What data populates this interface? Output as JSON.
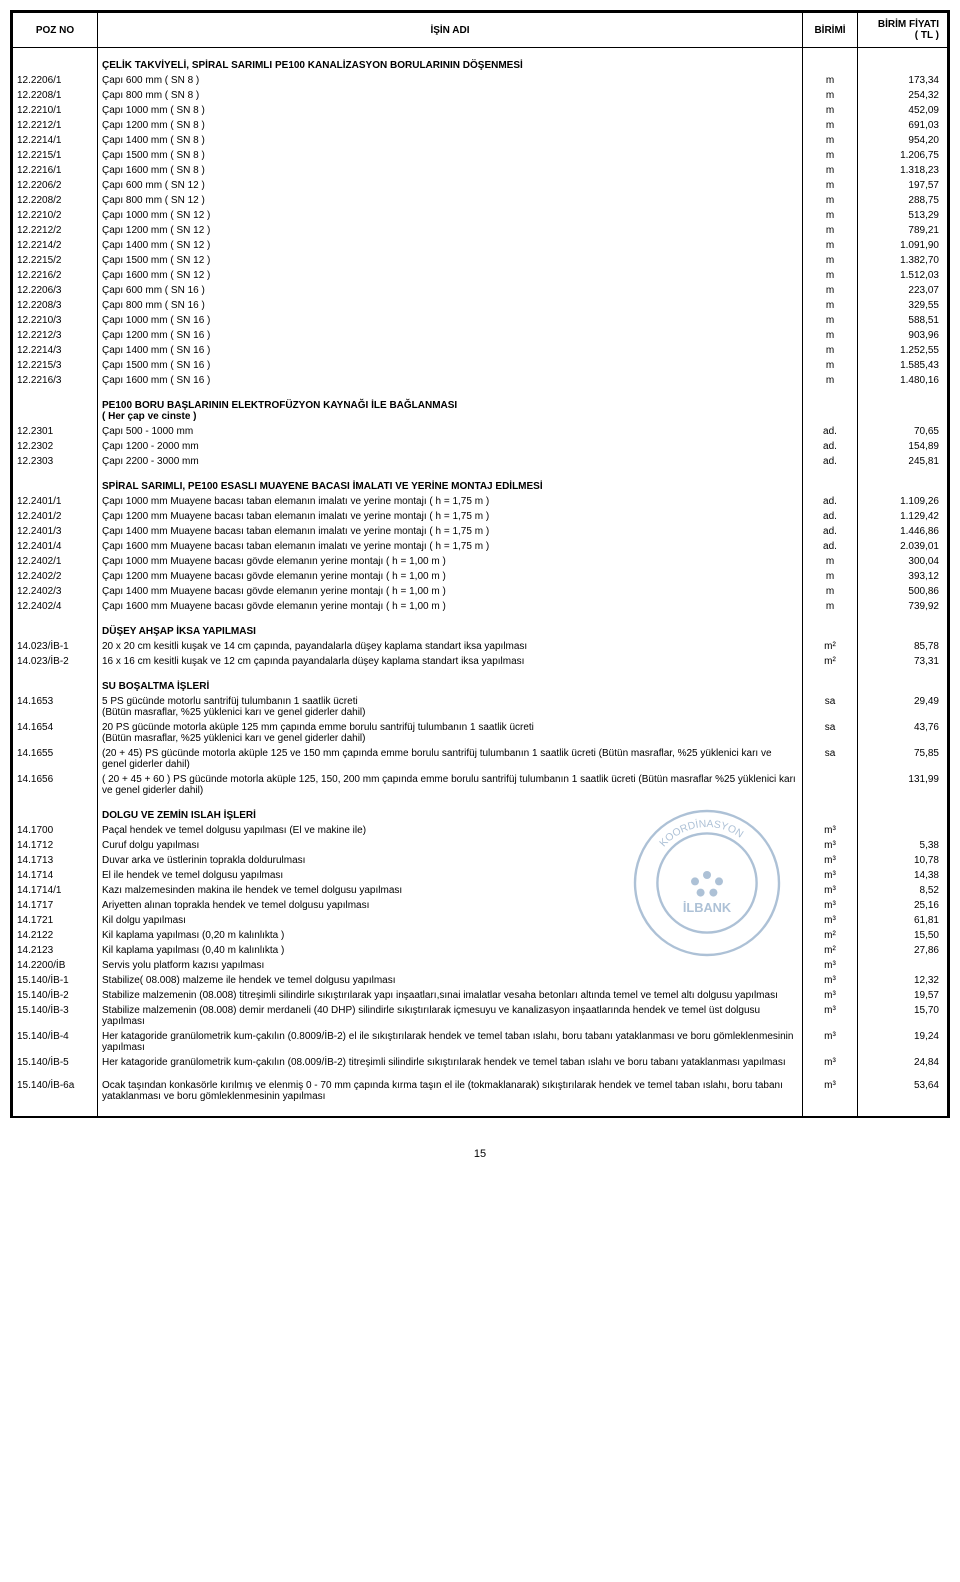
{
  "header": {
    "poz": "POZ NO",
    "ad": "İŞİN  ADI",
    "birim": "BİRİMİ",
    "fiyat": "BİRİM FİYATI\n( TL )"
  },
  "sections": [
    {
      "title": "ÇELİK TAKVİYELİ, SPİRAL SARIMLI  PE100  KANALİZASYON BORULARININ DÖŞENMESİ",
      "rows": [
        [
          "12.2206/1",
          "Çapı   600 mm     ( SN 8 )",
          "m",
          "173,34"
        ],
        [
          "12.2208/1",
          "Çapı   800 mm     ( SN 8 )",
          "m",
          "254,32"
        ],
        [
          "12.2210/1",
          "Çapı  1000 mm     ( SN 8 )",
          "m",
          "452,09"
        ],
        [
          "12.2212/1",
          "Çapı  1200 mm     ( SN 8 )",
          "m",
          "691,03"
        ],
        [
          "12.2214/1",
          "Çapı  1400 mm     ( SN 8 )",
          "m",
          "954,20"
        ],
        [
          "12.2215/1",
          "Çapı  1500 mm     ( SN 8 )",
          "m",
          "1.206,75"
        ],
        [
          "12.2216/1",
          "Çapı  1600 mm     ( SN 8 )",
          "m",
          "1.318,23"
        ],
        [
          "12.2206/2",
          "Çapı   600 mm     ( SN 12 )",
          "m",
          "197,57"
        ],
        [
          "12.2208/2",
          "Çapı   800 mm     ( SN 12 )",
          "m",
          "288,75"
        ],
        [
          "12.2210/2",
          "Çapı  1000 mm     ( SN 12 )",
          "m",
          "513,29"
        ],
        [
          "12.2212/2",
          "Çapı  1200 mm     ( SN 12 )",
          "m",
          "789,21"
        ],
        [
          "12.2214/2",
          "Çapı  1400 mm     ( SN 12 )",
          "m",
          "1.091,90"
        ],
        [
          "12.2215/2",
          "Çapı  1500 mm     ( SN 12 )",
          "m",
          "1.382,70"
        ],
        [
          "12.2216/2",
          "Çapı  1600 mm     ( SN 12 )",
          "m",
          "1.512,03"
        ],
        [
          "12.2206/3",
          "Çapı   600 mm     ( SN 16 )",
          "m",
          "223,07"
        ],
        [
          "12.2208/3",
          "Çapı   800 mm     ( SN 16 )",
          "m",
          "329,55"
        ],
        [
          "12.2210/3",
          "Çapı  1000 mm     ( SN 16 )",
          "m",
          "588,51"
        ],
        [
          "12.2212/3",
          "Çapı  1200 mm     ( SN 16 )",
          "m",
          "903,96"
        ],
        [
          "12.2214/3",
          "Çapı  1400 mm     ( SN 16 )",
          "m",
          "1.252,55"
        ],
        [
          "12.2215/3",
          "Çapı  1500 mm     ( SN 16 )",
          "m",
          "1.585,43"
        ],
        [
          "12.2216/3",
          "Çapı  1600 mm     ( SN 16 )",
          "m",
          "1.480,16"
        ]
      ]
    },
    {
      "title": "PE100  BORU BAŞLARININ ELEKTROFÜZYON KAYNAĞI İLE BAĞLANMASI",
      "subtitle": "( Her çap ve cinste )",
      "rows": [
        [
          "12.2301",
          "Çapı    500 - 1000 mm",
          "ad.",
          "70,65"
        ],
        [
          "12.2302",
          "Çapı   1200 - 2000 mm",
          "ad.",
          "154,89"
        ],
        [
          "12.2303",
          "Çapı   2200 - 3000 mm",
          "ad.",
          "245,81"
        ]
      ]
    },
    {
      "title": "SPİRAL SARIMLI, PE100 ESASLI MUAYENE BACASI İMALATI VE YERİNE MONTAJ EDİLMESİ",
      "rows": [
        [
          "12.2401/1",
          "Çapı  1000 mm  Muayene bacası taban elemanın imalatı ve yerine montajı     ( h = 1,75 m )",
          "ad.",
          "1.109,26"
        ],
        [
          "12.2401/2",
          "Çapı  1200 mm  Muayene bacası taban elemanın imalatı ve yerine montajı     ( h = 1,75 m )",
          "ad.",
          "1.129,42"
        ],
        [
          "12.2401/3",
          "Çapı  1400 mm  Muayene bacası taban elemanın imalatı ve yerine montajı     ( h = 1,75 m )",
          "ad.",
          "1.446,86"
        ],
        [
          "12.2401/4",
          "Çapı  1600 mm  Muayene bacası taban elemanın imalatı ve yerine montajı     ( h = 1,75 m )",
          "ad.",
          "2.039,01"
        ],
        [
          "12.2402/1",
          "Çapı  1000 mm  Muayene bacası gövde elemanın yerine montajı                ( h = 1,00 m )",
          "m",
          "300,04"
        ],
        [
          "12.2402/2",
          "Çapı  1200 mm  Muayene bacası gövde elemanın yerine montajı                ( h = 1,00 m )",
          "m",
          "393,12"
        ],
        [
          "12.2402/3",
          "Çapı  1400 mm  Muayene bacası gövde elemanın yerine montajı                ( h = 1,00 m )",
          "m",
          "500,86"
        ],
        [
          "12.2402/4",
          "Çapı  1600 mm  Muayene bacası gövde elemanın yerine montajı                ( h = 1,00 m )",
          "m",
          "739,92"
        ]
      ]
    },
    {
      "title": "DÜŞEY AHŞAP İKSA YAPILMASI",
      "rows": [
        [
          "14.023/İB-1",
          "20 x 20 cm  kesitli kuşak ve 14 cm çapında, payandalarla düşey kaplama standart iksa yapılması",
          "m²",
          "85,78"
        ],
        [
          "14.023/İB-2",
          "16 x 16 cm  kesitli kuşak ve 12 cm çapında payandalarla düşey kaplama standart iksa yapılması",
          "m²",
          "73,31"
        ]
      ]
    },
    {
      "title": "SU BOŞALTMA İŞLERİ",
      "rows": [
        [
          "14.1653",
          "5 PS  gücünde motorlu santrifüj tulumbanın 1 saatlik ücreti\n(Bütün masraflar, %25 yüklenici karı ve genel giderler dahil)",
          "sa",
          "29,49"
        ],
        [
          "14.1654",
          "20 PS  gücünde motorla aküple 125 mm çapında emme borulu santrifüj tulumbanın 1 saatlik ücreti\n(Bütün masraflar, %25 yüklenici karı ve genel giderler dahil)",
          "sa",
          "43,76"
        ],
        [
          "14.1655",
          "(20 + 45) PS gücünde motorla aküple 125 ve 150 mm çapında emme borulu santrifüj tulumbanın 1 saatlik ücreti   (Bütün masraflar, %25 yüklenici karı ve genel giderler dahil)",
          "sa",
          "75,85"
        ],
        [
          "14.1656",
          "( 20 + 45 + 60 )  PS  gücünde   motorla  aküple 125, 150, 200 mm çapında emme borulu santrifüj tulumbanın 1 saatlik ücreti  (Bütün masraflar %25 yüklenici karı ve genel giderler dahil)",
          "",
          "131,99"
        ]
      ]
    },
    {
      "title": "DOLGU  VE ZEMİN ISLAH İŞLERİ",
      "stamp": true,
      "rows": [
        [
          "14.1700",
          "Paçal hendek ve temel dolgusu yapılması  (El ve makine ile)",
          "m³",
          ""
        ],
        [
          "14.1712",
          "Curuf dolgu yapılması",
          "m³",
          "5,38"
        ],
        [
          "14.1713",
          "Duvar arka ve üstlerinin toprakla doldurulması",
          "m³",
          "10,78"
        ],
        [
          "14.1714",
          "El ile hendek ve temel dolgusu yapılması",
          "m³",
          "14,38"
        ],
        [
          "14.1714/1",
          "Kazı malzemesinden makina ile hendek ve temel dolgusu yapılması",
          "m³",
          "8,52"
        ],
        [
          "14.1717",
          "Ariyetten alınan toprakla hendek  ve temel dolgusu yapılması",
          "m³",
          "25,16"
        ],
        [
          "14.1721",
          "Kil dolgu yapılması",
          "m³",
          "61,81"
        ],
        [
          "14.2122",
          "Kil kaplama yapılması (0,20 m kalınlıkta )",
          "m²",
          "15,50"
        ],
        [
          "14.2123",
          "Kil kaplama yapılması (0,40 m kalınlıkta )",
          "m²",
          "27,86"
        ],
        [
          "14.2200/İB",
          "Servis yolu platform kazısı yapılması",
          "m³",
          ""
        ],
        [
          "15.140/İB-1",
          "Stabilize( 08.008) malzeme ile hendek ve temel dolgusu yapılması",
          "m³",
          "12,32"
        ],
        [
          "15.140/İB-2",
          "Stabilize malzemenin (08.008) titreşimli silindirle sıkıştırılarak yapı inşaatları,sınai imalatlar vesaha betonları altında temel ve temel altı dolgusu yapılması",
          "m³",
          "19,57"
        ],
        [
          "15.140/İB-3",
          "Stabilize malzemenin (08.008) demir merdaneli (40 DHP) silindirle sıkıştırılarak içmesuyu ve kanalizasyon inşaatlarında hendek ve temel üst dolgusu yapılması",
          "m³",
          "15,70"
        ],
        [
          "15.140/İB-4",
          "Her katagoride granülometrik kum-çakılın (0.8009/İB-2) el ile sıkıştırılarak hendek ve temel taban ıslahı, boru tabanı yataklanması ve boru gömleklenmesinin yapılması",
          "m³",
          "19,24"
        ],
        [
          "15.140/İB-5",
          "Her katagoride granülometrik kum-çakılın (08.009/İB-2) titreşimli silindirle sıkıştırılarak hendek ve temel taban ıslahı ve boru tabanı yataklanması yapılması",
          "m³",
          "24,84"
        ],
        [
          "15.140/İB-6a",
          "Ocak taşından konkasörle kırılmış ve elenmiş  0 - 70 mm çapında kırma taşın el ile (tokmaklanarak) sıkıştırılarak hendek ve temel taban ıslahı, boru tabanı yataklanması ve boru gömleklenmesinin yapılması",
          "m³",
          "53,64"
        ]
      ]
    }
  ],
  "page_number": "15",
  "stamp_text": {
    "top": "KOORDİNASYON",
    "bank": "İLBANK"
  }
}
